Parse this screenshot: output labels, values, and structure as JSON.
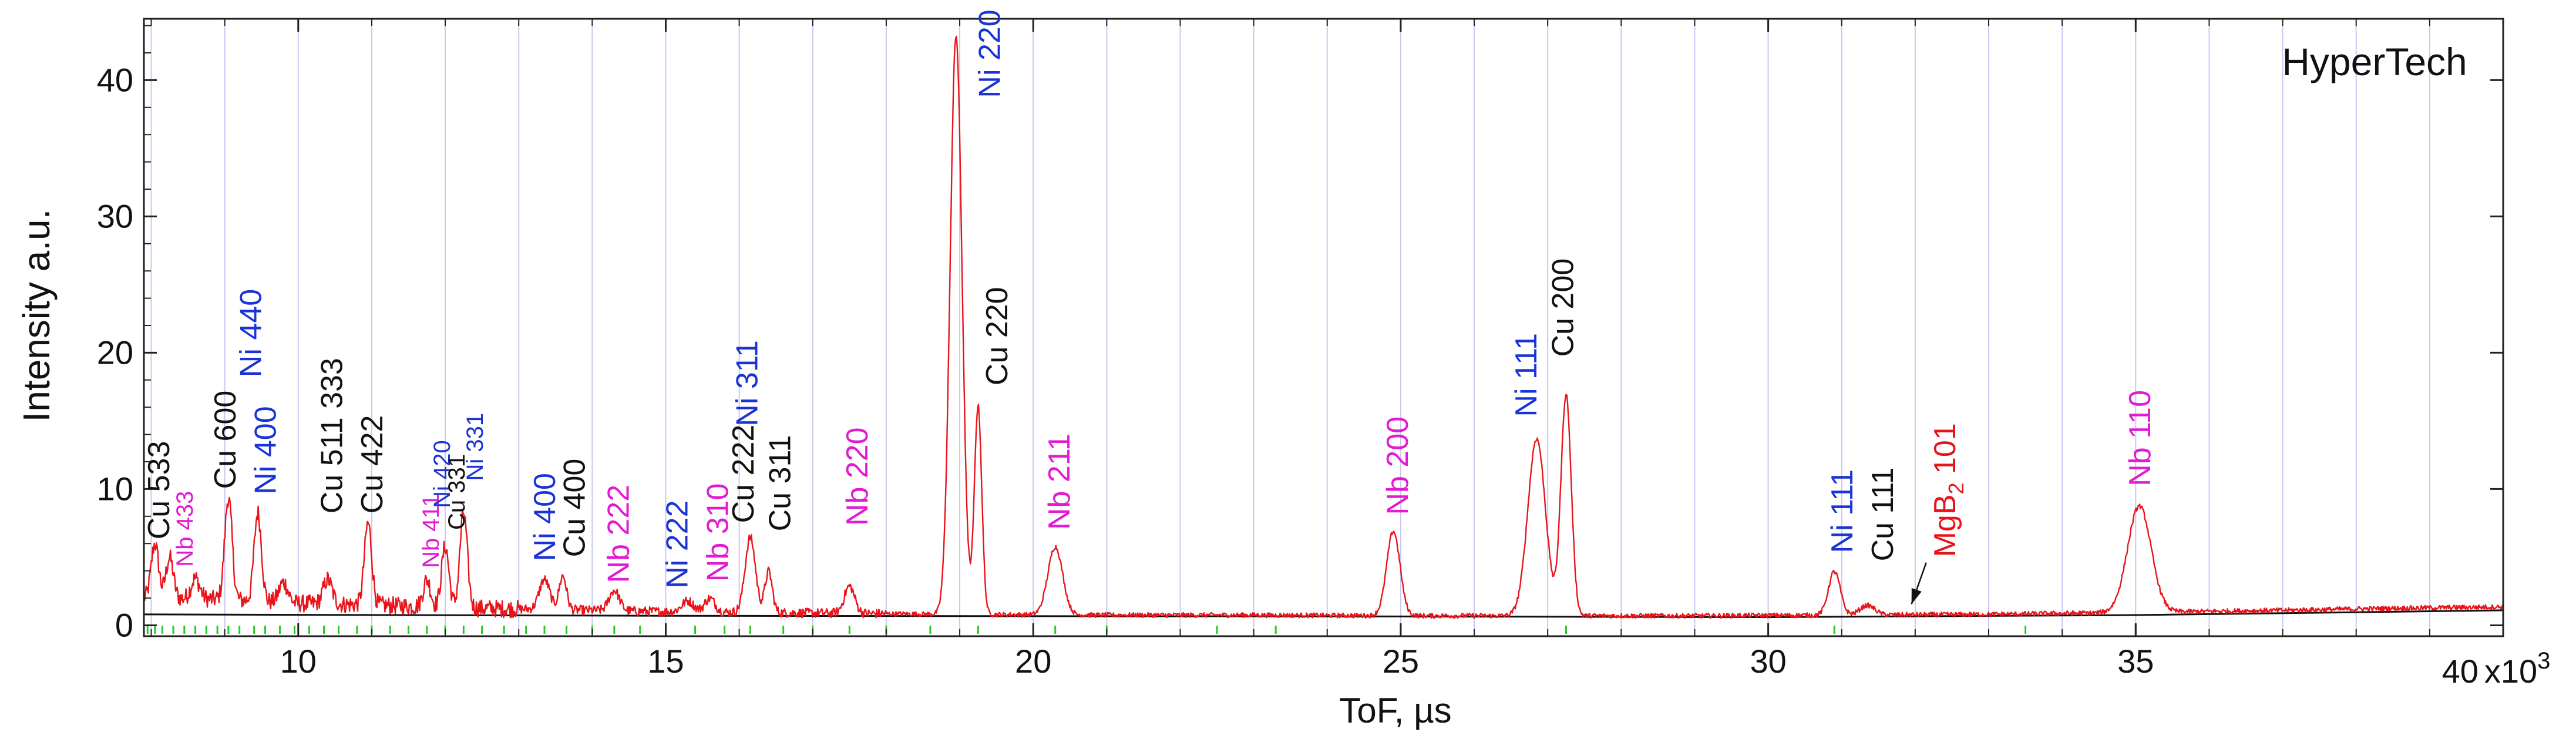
{
  "chart_data": {
    "type": "line",
    "brand": "HyperTech",
    "xlabel": "ToF,  µs",
    "ylabel": "Intensity a.u.",
    "x_scale_note": "x10",
    "x_scale_exp": "3",
    "xlim": [
      7.9,
      40.0
    ],
    "ylim": [
      -0.8,
      44.5
    ],
    "x_ticks": [
      10,
      15,
      20,
      25,
      30,
      35,
      40
    ],
    "x_tick_labels": [
      "10",
      "15",
      "20",
      "25",
      "30",
      "35",
      "40"
    ],
    "y_ticks": [
      0,
      10,
      20,
      30,
      40
    ],
    "y_tick_labels": [
      "0",
      "10",
      "20",
      "30",
      "40"
    ],
    "grid": true,
    "legend": "none",
    "colors": {
      "data": "#e8141a",
      "background_line": "#111111",
      "grid": "#c8c8f4",
      "cu": "#111111",
      "ni": "#1a33d6",
      "nb": "#e21ad2",
      "mgb2": "#e8141a",
      "ticks_marker": "#22cc22"
    },
    "background": {
      "x": [
        7.9,
        15,
        25,
        30,
        35,
        40
      ],
      "y": [
        0.8,
        0.7,
        0.65,
        0.6,
        0.75,
        1.1
      ]
    },
    "baseline": [
      [
        7.9,
        2.0
      ],
      [
        9.0,
        1.9
      ],
      [
        10.0,
        1.6
      ],
      [
        11.0,
        1.5
      ],
      [
        12.0,
        1.3
      ],
      [
        13.0,
        1.2
      ],
      [
        14.0,
        1.1
      ],
      [
        15.0,
        1.0
      ],
      [
        16.0,
        0.95
      ],
      [
        17.0,
        0.9
      ],
      [
        18.0,
        0.85
      ],
      [
        19.0,
        0.8
      ],
      [
        21.0,
        0.75
      ],
      [
        23.0,
        0.75
      ],
      [
        25.0,
        0.7
      ],
      [
        27.0,
        0.7
      ],
      [
        29.0,
        0.7
      ],
      [
        31.0,
        0.75
      ],
      [
        33.0,
        0.8
      ],
      [
        35.0,
        0.95
      ],
      [
        37.0,
        1.1
      ],
      [
        38.5,
        1.25
      ],
      [
        40.0,
        1.35
      ]
    ],
    "peaks": [
      {
        "x": 8.05,
        "height": 4.0,
        "width": 0.05
      },
      {
        "x": 8.25,
        "height": 3.0,
        "width": 0.05
      },
      {
        "x": 8.6,
        "height": 1.5,
        "width": 0.06
      },
      {
        "x": 9.05,
        "height": 7.5,
        "width": 0.05
      },
      {
        "x": 9.45,
        "height": 6.5,
        "width": 0.05
      },
      {
        "x": 9.8,
        "height": 1.5,
        "width": 0.06
      },
      {
        "x": 10.4,
        "height": 1.8,
        "width": 0.06
      },
      {
        "x": 10.95,
        "height": 6.0,
        "width": 0.05
      },
      {
        "x": 11.75,
        "height": 2.0,
        "width": 0.05
      },
      {
        "x": 12.0,
        "height": 4.5,
        "width": 0.05
      },
      {
        "x": 12.25,
        "height": 7.0,
        "width": 0.05
      },
      {
        "x": 13.35,
        "height": 2.2,
        "width": 0.07
      },
      {
        "x": 13.6,
        "height": 2.5,
        "width": 0.05
      },
      {
        "x": 14.3,
        "height": 1.5,
        "width": 0.07
      },
      {
        "x": 15.3,
        "height": 0.8,
        "width": 0.08
      },
      {
        "x": 15.6,
        "height": 1.0,
        "width": 0.07
      },
      {
        "x": 16.15,
        "height": 5.5,
        "width": 0.07
      },
      {
        "x": 16.4,
        "height": 3.0,
        "width": 0.05
      },
      {
        "x": 17.5,
        "height": 2.0,
        "width": 0.07
      },
      {
        "x": 18.95,
        "height": 42.5,
        "width": 0.08
      },
      {
        "x": 19.25,
        "height": 15.3,
        "width": 0.05
      },
      {
        "x": 20.3,
        "height": 5.0,
        "width": 0.1
      },
      {
        "x": 24.9,
        "height": 6.2,
        "width": 0.09
      },
      {
        "x": 26.85,
        "height": 13.0,
        "width": 0.12
      },
      {
        "x": 27.25,
        "height": 16.2,
        "width": 0.07
      },
      {
        "x": 30.9,
        "height": 3.2,
        "width": 0.08
      },
      {
        "x": 31.35,
        "height": 0.7,
        "width": 0.1
      },
      {
        "x": 35.05,
        "height": 7.8,
        "width": 0.16
      }
    ],
    "annotations": [
      {
        "text": "Cu 533",
        "x": 8.1,
        "y": 6.3,
        "color": "#111111",
        "size": "l"
      },
      {
        "text": "Nb 433",
        "x": 8.45,
        "y": 4.3,
        "color": "#e21ad2",
        "size": "s"
      },
      {
        "text": "Cu 600",
        "x": 9.0,
        "y": 10.0,
        "color": "#111111",
        "size": "l"
      },
      {
        "text": "Ni 440",
        "x": 9.35,
        "y": 18.2,
        "color": "#1a33d6",
        "size": "l"
      },
      {
        "text": "Ni 400",
        "x": 9.55,
        "y": 9.6,
        "color": "#1a33d6",
        "size": "l"
      },
      {
        "text": "Cu 511 333",
        "x": 10.45,
        "y": 8.2,
        "color": "#111111",
        "size": "l"
      },
      {
        "text": "Cu 422",
        "x": 11.0,
        "y": 8.2,
        "color": "#111111",
        "size": "l"
      },
      {
        "text": "Nb 411",
        "x": 11.8,
        "y": 4.2,
        "color": "#e21ad2",
        "size": "s"
      },
      {
        "text": "Ni 420",
        "x": 11.95,
        "y": 8.6,
        "color": "#1a33d6",
        "size": "s"
      },
      {
        "text": "Cu 331",
        "x": 12.15,
        "y": 7.0,
        "color": "#111111",
        "size": "s"
      },
      {
        "text": "Ni 331",
        "x": 12.4,
        "y": 10.6,
        "color": "#1a33d6",
        "size": "s"
      },
      {
        "text": "Ni 400",
        "x": 13.35,
        "y": 4.7,
        "color": "#1a33d6",
        "size": "l"
      },
      {
        "text": "Cu 400",
        "x": 13.75,
        "y": 5.0,
        "color": "#111111",
        "size": "l"
      },
      {
        "text": "Nb 222",
        "x": 14.35,
        "y": 3.1,
        "color": "#e21ad2",
        "size": "l"
      },
      {
        "text": "Ni 222",
        "x": 15.15,
        "y": 2.7,
        "color": "#1a33d6",
        "size": "l"
      },
      {
        "text": "Nb 310",
        "x": 15.7,
        "y": 3.2,
        "color": "#e21ad2",
        "size": "l"
      },
      {
        "text": "Cu 222",
        "x": 16.05,
        "y": 7.5,
        "color": "#111111",
        "size": "l"
      },
      {
        "text": "Ni 311",
        "x": 16.1,
        "y": 14.6,
        "color": "#1a33d6",
        "size": "l"
      },
      {
        "text": "Cu 311",
        "x": 16.55,
        "y": 6.9,
        "color": "#111111",
        "size": "l"
      },
      {
        "text": "Nb 220",
        "x": 17.6,
        "y": 7.3,
        "color": "#e21ad2",
        "size": "l"
      },
      {
        "text": "Ni 220",
        "x": 19.4,
        "y": 38.7,
        "color": "#1a33d6",
        "size": "l"
      },
      {
        "text": "Cu 220",
        "x": 19.5,
        "y": 17.6,
        "color": "#111111",
        "size": "l"
      },
      {
        "text": "Nb 211",
        "x": 20.35,
        "y": 7.0,
        "color": "#e21ad2",
        "size": "l"
      },
      {
        "text": "Nb 200",
        "x": 24.95,
        "y": 8.1,
        "color": "#e21ad2",
        "size": "l"
      },
      {
        "text": "Ni 111",
        "x": 26.7,
        "y": 15.3,
        "color": "#1a33d6",
        "size": "l"
      },
      {
        "text": "Cu 200",
        "x": 27.2,
        "y": 19.7,
        "color": "#111111",
        "size": "l"
      },
      {
        "text": "Ni 111",
        "x": 31.0,
        "y": 5.3,
        "color": "#1a33d6",
        "size": "l"
      },
      {
        "text": "Cu 111",
        "x": 31.55,
        "y": 4.7,
        "color": "#111111",
        "size": "l"
      },
      {
        "text": "Nb 110",
        "x": 35.05,
        "y": 10.2,
        "color": "#e21ad2",
        "size": "l"
      }
    ],
    "mgb2_label": {
      "base": "MgB",
      "sub": "2",
      "hkl": " 101",
      "x": 32.4,
      "y": 5.0,
      "color": "#e8141a"
    },
    "mgb2_arrow": {
      "x1": 32.15,
      "y1": 4.6,
      "x2": 31.95,
      "y2": 1.55
    },
    "tick_marks_green": [
      7.95,
      8.05,
      8.15,
      8.3,
      8.45,
      8.6,
      8.75,
      8.9,
      9.05,
      9.2,
      9.4,
      9.55,
      9.75,
      9.95,
      10.15,
      10.35,
      10.55,
      10.8,
      11.0,
      11.25,
      11.5,
      11.75,
      12.0,
      12.25,
      12.5,
      12.8,
      13.1,
      13.35,
      13.65,
      14.0,
      14.3,
      14.65,
      15.0,
      15.4,
      15.8,
      16.15,
      16.6,
      17.0,
      17.5,
      18.0,
      18.6,
      19.25,
      20.3,
      21.0,
      22.5,
      23.3,
      25.0,
      27.25,
      30.9,
      33.5,
      35.0
    ]
  }
}
